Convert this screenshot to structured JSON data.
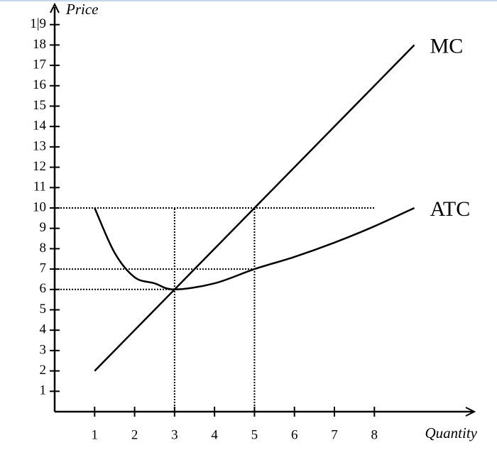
{
  "chart_data": {
    "type": "line",
    "y_label": "Price",
    "x_label": "Quantity",
    "xlim": [
      0,
      10.5
    ],
    "ylim": [
      0,
      20
    ],
    "xticks": [
      1,
      2,
      3,
      4,
      5,
      6,
      7,
      8
    ],
    "yticks": [
      1,
      2,
      3,
      4,
      5,
      6,
      7,
      8,
      9,
      10,
      11,
      12,
      13,
      14,
      15,
      16,
      17,
      18,
      {
        "value": 19,
        "label": "1|9"
      }
    ],
    "series": [
      {
        "name": "MC",
        "color": "#000000",
        "x": [
          1,
          9
        ],
        "values": [
          2,
          18
        ]
      },
      {
        "name": "ATC",
        "color": "#000000",
        "x": [
          1,
          1.5,
          2,
          2.5,
          3,
          4,
          5,
          6,
          7,
          8,
          9
        ],
        "values": [
          10,
          7.8,
          6.6,
          6.3,
          6,
          6.3,
          7,
          7.6,
          8.3,
          9.1,
          10
        ]
      }
    ],
    "guides": [
      {
        "x": [
          0,
          8
        ],
        "y": [
          10,
          10
        ]
      },
      {
        "x": [
          0,
          5
        ],
        "y": [
          7,
          7
        ]
      },
      {
        "x": [
          0,
          3
        ],
        "y": [
          6,
          6
        ]
      },
      {
        "x": [
          3,
          3
        ],
        "y": [
          0,
          10
        ]
      },
      {
        "x": [
          5,
          5
        ],
        "y": [
          0,
          10
        ]
      }
    ]
  }
}
